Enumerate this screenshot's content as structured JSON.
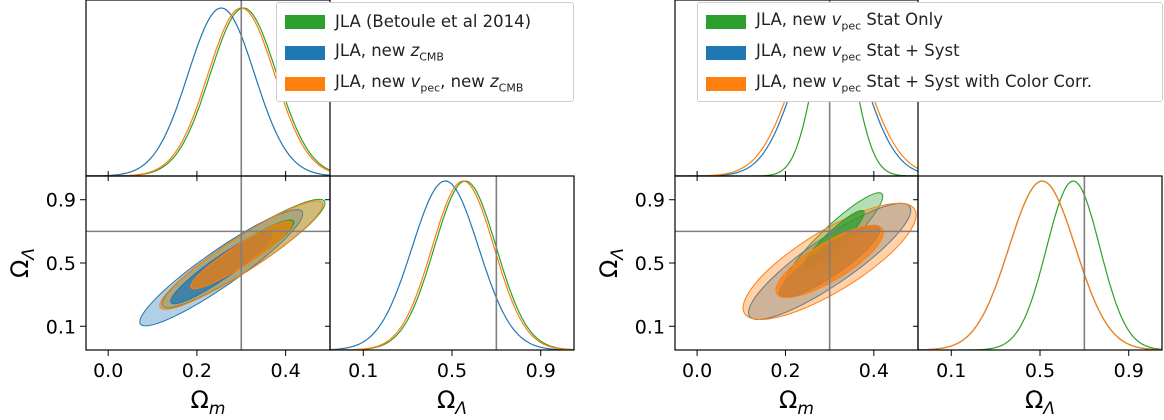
{
  "colors": {
    "green": "#2ca02c",
    "blue": "#1f77b4",
    "orange": "#ff7f0e",
    "frame": "#000000",
    "ref_line": "#7f7f7f"
  },
  "chart_data": [
    {
      "type": "corner",
      "reference": {
        "omega_m": 0.3,
        "omega_lambda": 0.7
      },
      "axes": {
        "omega_m": {
          "label": "Ω_m",
          "range": [
            -0.05,
            0.5
          ],
          "ticks": [
            "0.0",
            "0.2",
            "0.4"
          ],
          "tick_values": [
            0.0,
            0.2,
            0.4
          ]
        },
        "omega_lambda": {
          "label": "Ω_Λ",
          "range": [
            -0.05,
            1.05
          ],
          "ticks": [
            "0.1",
            "0.5",
            "0.9"
          ],
          "tick_values": [
            0.1,
            0.5,
            0.9
          ]
        }
      },
      "legend": {
        "placement": "top-right",
        "entries": [
          {
            "label": "JLA (Betoule et al 2014)",
            "color_key": "green"
          },
          {
            "label_pre": "JLA, new ",
            "label_italic": "z",
            "label_sub": "CMB",
            "color_key": "blue"
          },
          {
            "label_pre": "JLA, new ",
            "label_italic": "v",
            "label_sub": "pec",
            "label_post": ", new ",
            "label_italic2": "z",
            "label_sub2": "CMB",
            "color_key": "orange"
          }
        ]
      },
      "series": [
        {
          "color_key": "green",
          "omega_m_mean": 0.305,
          "omega_m_sigma": 0.075,
          "omega_lambda_mean": 0.56,
          "omega_lambda_sigma": 0.14,
          "corr": 0.93
        },
        {
          "color_key": "blue",
          "omega_m_mean": 0.255,
          "omega_m_sigma": 0.075,
          "omega_lambda_mean": 0.47,
          "omega_lambda_sigma": 0.15,
          "corr": 0.93
        },
        {
          "color_key": "orange",
          "omega_m_mean": 0.3,
          "omega_m_sigma": 0.075,
          "omega_lambda_mean": 0.55,
          "omega_lambda_sigma": 0.14,
          "corr": 0.93
        }
      ]
    },
    {
      "type": "corner",
      "reference": {
        "omega_m": 0.3,
        "omega_lambda": 0.7
      },
      "axes": {
        "omega_m": {
          "label": "Ω_m",
          "range": [
            -0.05,
            0.5
          ],
          "ticks": [
            "0.0",
            "0.2",
            "0.4"
          ],
          "tick_values": [
            0.0,
            0.2,
            0.4
          ]
        },
        "omega_lambda": {
          "label": "Ω_Λ",
          "range": [
            -0.05,
            1.05
          ],
          "ticks": [
            "0.1",
            "0.5",
            "0.9"
          ],
          "tick_values": [
            0.1,
            0.5,
            0.9
          ]
        }
      },
      "legend": {
        "placement": "top-right",
        "entries": [
          {
            "label_pre": "JLA, new ",
            "label_italic": "v",
            "label_sub": "pec",
            "label_post": " Stat Only",
            "color_key": "green"
          },
          {
            "label_pre": "JLA, new ",
            "label_italic": "v",
            "label_sub": "pec",
            "label_post": " Stat + Syst",
            "color_key": "blue"
          },
          {
            "label_pre": "JLA, new ",
            "label_italic": "v",
            "label_sub": "pec",
            "label_post": " Stat + Syst with Color Corr.",
            "color_key": "orange"
          }
        ]
      },
      "series": [
        {
          "color_key": "green",
          "omega_m_mean": 0.31,
          "omega_m_sigma": 0.045,
          "omega_lambda_mean": 0.65,
          "omega_lambda_sigma": 0.12,
          "corr": 0.92
        },
        {
          "color_key": "blue",
          "omega_m_mean": 0.3,
          "omega_m_sigma": 0.075,
          "omega_lambda_mean": 0.51,
          "omega_lambda_sigma": 0.15,
          "corr": 0.88
        },
        {
          "color_key": "orange",
          "omega_m_mean": 0.3,
          "omega_m_sigma": 0.08,
          "omega_lambda_mean": 0.51,
          "omega_lambda_sigma": 0.15,
          "corr": 0.8
        }
      ]
    }
  ]
}
